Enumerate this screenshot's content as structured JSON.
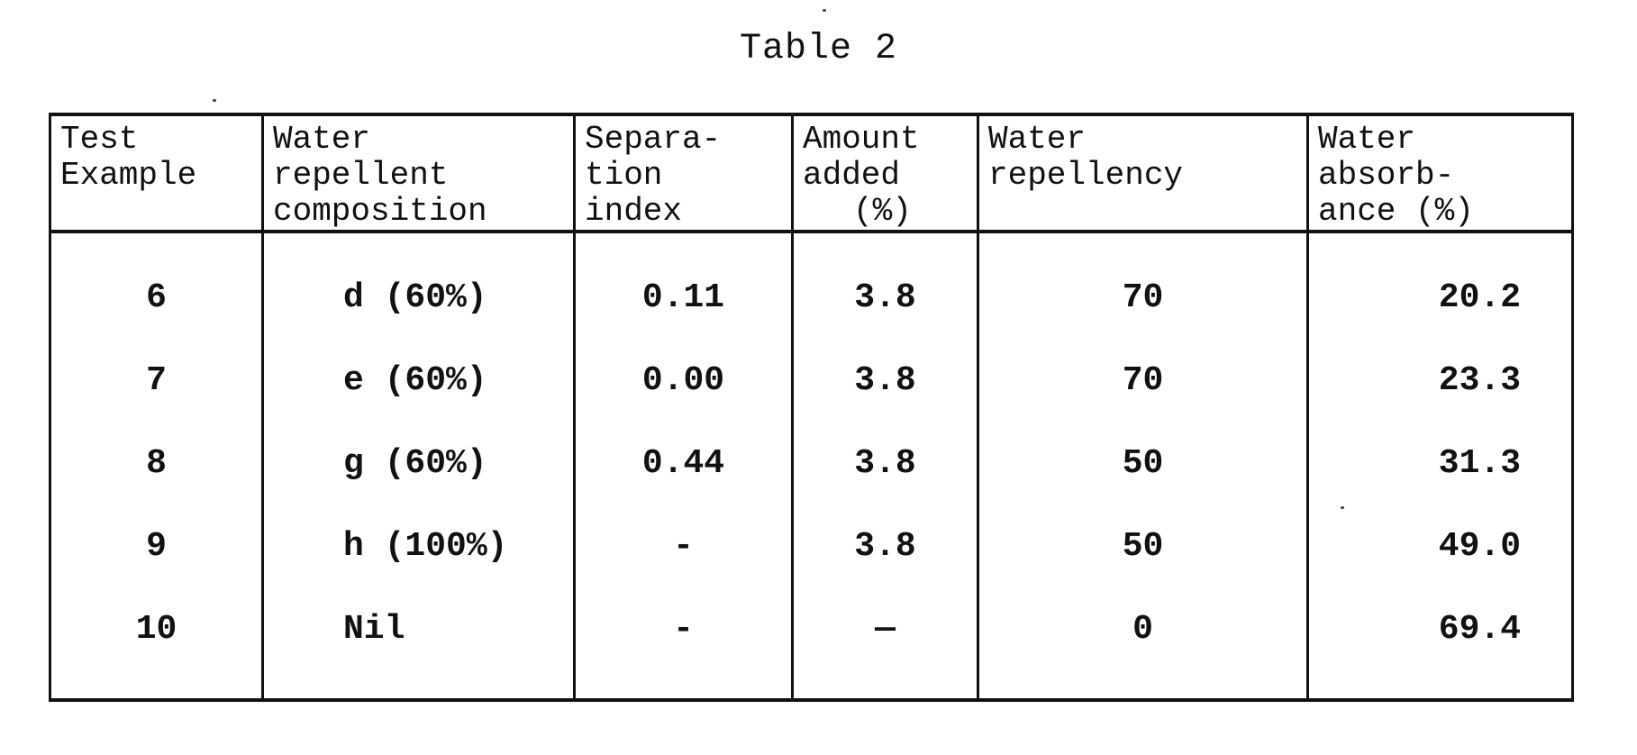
{
  "title": "Table 2",
  "table": {
    "headers": [
      [
        "Test",
        "Example"
      ],
      [
        "Water",
        "repellent",
        "composition"
      ],
      [
        "Separa-",
        "tion",
        "index"
      ],
      [
        "Amount",
        "added",
        "(%)"
      ],
      [
        "Water",
        "repellency"
      ],
      [
        "Water",
        "absorb-",
        "ance (%)"
      ]
    ],
    "rows": [
      [
        "6",
        "d (60%)",
        "0.11",
        "3.8",
        "70",
        "20.2"
      ],
      [
        "7",
        "e (60%)",
        "0.00",
        "3.8",
        "70",
        "23.3"
      ],
      [
        "8",
        "g (60%)",
        "0.44",
        "3.8",
        "50",
        "31.3"
      ],
      [
        "9",
        "h (100%)",
        "-",
        "3.8",
        "50",
        "49.0"
      ],
      [
        "10",
        "Nil",
        "-",
        "—",
        "0",
        "69.4"
      ]
    ]
  }
}
